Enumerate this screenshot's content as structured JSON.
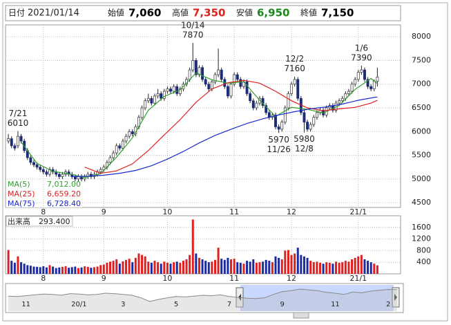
{
  "chart_data": {
    "type": "candlestick",
    "header": {
      "date_label": "日付",
      "date": "2021/01/14",
      "fields": [
        {
          "label": "始値",
          "value": "7,060",
          "color": "#000000"
        },
        {
          "label": "高値",
          "value": "7,350",
          "color": "#e0201a"
        },
        {
          "label": "安値",
          "value": "6,950",
          "color": "#1a8a1a"
        },
        {
          "label": "終値",
          "value": "7,150",
          "color": "#000000"
        }
      ]
    },
    "up_color": "#ffffff",
    "down_color": "#1c2a7a",
    "wick_color": "#222222",
    "grid": true,
    "ylim": [
      4400,
      8250
    ],
    "yticks": [
      4500,
      5000,
      5500,
      6000,
      6500,
      7000,
      7500,
      8000
    ],
    "xlim": [
      -0.9,
      123.3
    ],
    "xticks": [
      {
        "value": 11,
        "label": "8"
      },
      {
        "value": 30,
        "label": "9"
      },
      {
        "value": 50,
        "label": "10"
      },
      {
        "value": 71,
        "label": "11"
      },
      {
        "value": 89,
        "label": "12"
      },
      {
        "value": 110,
        "label": "21/1"
      }
    ],
    "candles": [
      [
        5800,
        5950,
        5750,
        5850
      ],
      [
        5850,
        5900,
        5650,
        5700
      ],
      [
        5700,
        5750,
        5600,
        5650
      ],
      [
        5700,
        6010,
        5650,
        5900
      ],
      [
        5900,
        5950,
        5750,
        5800
      ],
      [
        5800,
        5850,
        5550,
        5600
      ],
      [
        5600,
        5650,
        5400,
        5450
      ],
      [
        5450,
        5500,
        5300,
        5350
      ],
      [
        5350,
        5400,
        5250,
        5300
      ],
      [
        5300,
        5350,
        5200,
        5250
      ],
      [
        5250,
        5300,
        5150,
        5200
      ],
      [
        5200,
        5250,
        5100,
        5150
      ],
      [
        5150,
        5200,
        5050,
        5100
      ],
      [
        5100,
        5250,
        5050,
        5200
      ],
      [
        5200,
        5250,
        5100,
        5150
      ],
      [
        5150,
        5200,
        5050,
        5100
      ],
      [
        5100,
        5150,
        5000,
        5050
      ],
      [
        5050,
        5150,
        5000,
        5100
      ],
      [
        5100,
        5200,
        5050,
        5150
      ],
      [
        5150,
        5200,
        5050,
        5100
      ],
      [
        5100,
        5150,
        5000,
        5050
      ],
      [
        5050,
        5100,
        4950,
        5000
      ],
      [
        5000,
        5100,
        4950,
        5050
      ],
      [
        5050,
        5100,
        4950,
        5000
      ],
      [
        5000,
        5100,
        4950,
        5050
      ],
      [
        5050,
        5150,
        5000,
        5100
      ],
      [
        5100,
        5150,
        5000,
        5050
      ],
      [
        5050,
        5150,
        5000,
        5100
      ],
      [
        5100,
        5200,
        5050,
        5150
      ],
      [
        5150,
        5250,
        5100,
        5200
      ],
      [
        5200,
        5300,
        5150,
        5250
      ],
      [
        5250,
        5400,
        5200,
        5350
      ],
      [
        5350,
        5500,
        5300,
        5450
      ],
      [
        5450,
        5600,
        5400,
        5550
      ],
      [
        5550,
        5750,
        5500,
        5700
      ],
      [
        5700,
        5750,
        5600,
        5650
      ],
      [
        5650,
        5850,
        5600,
        5800
      ],
      [
        5800,
        5950,
        5750,
        5900
      ],
      [
        5900,
        6050,
        5850,
        6000
      ],
      [
        6000,
        6050,
        5900,
        5950
      ],
      [
        5950,
        6150,
        5900,
        6100
      ],
      [
        6100,
        6350,
        6050,
        6300
      ],
      [
        6300,
        6550,
        6250,
        6500
      ],
      [
        6500,
        6700,
        6450,
        6650
      ],
      [
        6650,
        6800,
        6600,
        6700
      ],
      [
        6700,
        6750,
        6550,
        6600
      ],
      [
        6600,
        6800,
        6550,
        6750
      ],
      [
        6750,
        6900,
        6700,
        6800
      ],
      [
        6800,
        6850,
        6650,
        6700
      ],
      [
        6700,
        6900,
        6650,
        6850
      ],
      [
        6850,
        6950,
        6800,
        6900
      ],
      [
        6900,
        6950,
        6800,
        6850
      ],
      [
        6850,
        7000,
        6800,
        6950
      ],
      [
        6950,
        7000,
        6750,
        6800
      ],
      [
        6800,
        6950,
        6750,
        6900
      ],
      [
        6900,
        7050,
        6850,
        7000
      ],
      [
        7000,
        7150,
        6950,
        7100
      ],
      [
        7100,
        7350,
        7050,
        7300
      ],
      [
        7300,
        7870,
        7250,
        7500
      ],
      [
        7500,
        7550,
        7150,
        7200
      ],
      [
        7200,
        7400,
        7150,
        7350
      ],
      [
        7350,
        7400,
        7050,
        7100
      ],
      [
        7100,
        7150,
        6950,
        7000
      ],
      [
        7000,
        7050,
        6850,
        6900
      ],
      [
        6900,
        7100,
        6850,
        7050
      ],
      [
        7050,
        7250,
        7000,
        7200
      ],
      [
        7200,
        7750,
        7150,
        7300
      ],
      [
        7300,
        7350,
        7050,
        7100
      ],
      [
        7100,
        7150,
        6900,
        6950
      ],
      [
        6950,
        7000,
        6700,
        6750
      ],
      [
        6750,
        7050,
        6700,
        7000
      ],
      [
        7000,
        7250,
        6950,
        7200
      ],
      [
        7200,
        7250,
        7050,
        7100
      ],
      [
        7100,
        7150,
        6900,
        6950
      ],
      [
        6950,
        7100,
        6900,
        7050
      ],
      [
        7050,
        7100,
        6750,
        6800
      ],
      [
        6800,
        6850,
        6600,
        6650
      ],
      [
        6650,
        6700,
        6450,
        6500
      ],
      [
        6500,
        6650,
        6450,
        6600
      ],
      [
        6600,
        6750,
        6550,
        6700
      ],
      [
        6700,
        6750,
        6500,
        6550
      ],
      [
        6550,
        6600,
        6350,
        6400
      ],
      [
        6400,
        6450,
        6250,
        6300
      ],
      [
        6300,
        6400,
        6250,
        6350
      ],
      [
        6350,
        6400,
        6050,
        6100
      ],
      [
        6100,
        6150,
        5970,
        6050
      ],
      [
        6050,
        6250,
        6000,
        6200
      ],
      [
        6200,
        6550,
        6150,
        6500
      ],
      [
        6500,
        6850,
        6450,
        6800
      ],
      [
        6800,
        7050,
        6750,
        7000
      ],
      [
        7000,
        7160,
        6950,
        7100
      ],
      [
        7100,
        7150,
        6650,
        6700
      ],
      [
        6700,
        6750,
        6350,
        6400
      ],
      [
        6400,
        6450,
        5980,
        6200
      ],
      [
        6200,
        6250,
        6000,
        6050
      ],
      [
        6050,
        6200,
        6000,
        6150
      ],
      [
        6150,
        6350,
        6100,
        6300
      ],
      [
        6300,
        6450,
        6250,
        6400
      ],
      [
        6400,
        6500,
        6350,
        6450
      ],
      [
        6450,
        6500,
        6300,
        6350
      ],
      [
        6350,
        6550,
        6300,
        6500
      ],
      [
        6500,
        6600,
        6450,
        6550
      ],
      [
        6550,
        6600,
        6400,
        6450
      ],
      [
        6450,
        6650,
        6400,
        6600
      ],
      [
        6600,
        6700,
        6550,
        6650
      ],
      [
        6650,
        6750,
        6600,
        6700
      ],
      [
        6700,
        6850,
        6650,
        6800
      ],
      [
        6800,
        6900,
        6750,
        6850
      ],
      [
        6850,
        7050,
        6800,
        7000
      ],
      [
        7000,
        7150,
        6950,
        7100
      ],
      [
        7100,
        7300,
        7050,
        7250
      ],
      [
        7250,
        7390,
        7200,
        7300
      ],
      [
        7300,
        7350,
        7050,
        7100
      ],
      [
        7100,
        7150,
        6900,
        6950
      ],
      [
        6950,
        7000,
        6850,
        6900
      ],
      [
        6900,
        7100,
        6850,
        7060
      ],
      [
        7060,
        7350,
        6950,
        7150
      ]
    ],
    "annotations": [
      {
        "label": "7/21",
        "value": 6010
      },
      {
        "label": "10/14",
        "value": 7870
      },
      {
        "label": "12/2",
        "value": 7160
      },
      {
        "label": "1/6",
        "value": 7390
      },
      {
        "label": "11/26",
        "value": 5970
      },
      {
        "label": "12/8",
        "value": 5980
      }
    ],
    "ma": [
      {
        "name": "MA(5)",
        "current_label": "7,012.00",
        "color": "#2e9e2e",
        "x": [
          4,
          9,
          14,
          19,
          24,
          29,
          34,
          39,
          44,
          49,
          54,
          59,
          64,
          69,
          74,
          79,
          84,
          89,
          94,
          99,
          104,
          109,
          114,
          116
        ],
        "values": [
          5780,
          5330,
          5160,
          5110,
          5030,
          5110,
          5460,
          5870,
          6450,
          6740,
          6880,
          7240,
          7090,
          7020,
          7050,
          6660,
          6320,
          6510,
          6470,
          6390,
          6550,
          6890,
          7120,
          7012
        ]
      },
      {
        "name": "MA(25)",
        "current_label": "6,659.20",
        "color": "#e02020",
        "x": [
          24,
          29,
          34,
          39,
          44,
          49,
          54,
          59,
          64,
          69,
          74,
          79,
          84,
          89,
          94,
          99,
          104,
          109,
          114,
          116
        ],
        "values": [
          5250,
          5120,
          5170,
          5320,
          5600,
          5930,
          6250,
          6620,
          6900,
          7030,
          7080,
          7020,
          6850,
          6650,
          6500,
          6440,
          6480,
          6510,
          6600,
          6659.2
        ]
      },
      {
        "name": "MA(75)",
        "current_label": "6,728.40",
        "color": "#1a2ad0",
        "x": [
          20,
          25,
          30,
          35,
          40,
          45,
          50,
          55,
          60,
          65,
          70,
          75,
          80,
          85,
          90,
          95,
          100,
          105,
          110,
          115,
          116
        ],
        "values": [
          5050,
          5060,
          5080,
          5120,
          5180,
          5280,
          5420,
          5580,
          5760,
          5920,
          6050,
          6170,
          6270,
          6350,
          6420,
          6480,
          6520,
          6580,
          6660,
          6720,
          6728.4
        ]
      }
    ],
    "volume": {
      "label": "出来高",
      "current_label": "293.400",
      "up_color": "#e02020",
      "down_color": "#1c2aa0",
      "ylim": [
        0,
        2000
      ],
      "yticks": [
        400,
        800,
        1200,
        1600
      ],
      "values": [
        820,
        450,
        380,
        600,
        400,
        350,
        300,
        280,
        250,
        240,
        230,
        260,
        220,
        300,
        250,
        200,
        220,
        240,
        260,
        210,
        230,
        250,
        200,
        220,
        260,
        240,
        210,
        230,
        250,
        300,
        320,
        380,
        420,
        450,
        500,
        350,
        430,
        480,
        520,
        400,
        550,
        700,
        650,
        600,
        420,
        380,
        450,
        400,
        350,
        420,
        380,
        350,
        400,
        420,
        380,
        450,
        500,
        650,
        1870,
        700,
        550,
        500,
        450,
        400,
        420,
        480,
        900,
        520,
        480,
        550,
        500,
        520,
        400,
        380,
        350,
        450,
        420,
        500,
        380,
        400,
        420,
        480,
        450,
        400,
        600,
        550,
        500,
        800,
        820,
        650,
        700,
        900,
        650,
        600,
        550,
        450,
        400,
        420,
        380,
        350,
        400,
        380,
        350,
        420,
        380,
        400,
        450,
        420,
        500,
        550,
        600,
        650,
        500,
        450,
        400,
        350,
        293.4
      ]
    },
    "navigator": {
      "values": [
        5600,
        5500,
        5700,
        5900,
        6100,
        6000,
        5800,
        6200,
        6100,
        5900,
        6000,
        6300,
        6200,
        6000,
        5800,
        5200,
        4300,
        4800,
        5200,
        5500,
        5400,
        5600,
        5800,
        5700,
        5900,
        5500,
        5300,
        5100,
        5000,
        5200,
        6000,
        6700,
        6900,
        7300,
        7100,
        6900,
        6500,
        6300,
        6000,
        6600,
        6400,
        6800,
        7000,
        7200,
        7150
      ],
      "xticks": [
        {
          "value": 2,
          "label": "11"
        },
        {
          "value": 8,
          "label": "20/1"
        },
        {
          "value": 13,
          "label": "3"
        },
        {
          "value": 19,
          "label": "5"
        },
        {
          "value": 25,
          "label": "7"
        },
        {
          "value": 31,
          "label": "9"
        },
        {
          "value": 37,
          "label": "11"
        },
        {
          "value": 43,
          "label": "2"
        }
      ]
    }
  }
}
